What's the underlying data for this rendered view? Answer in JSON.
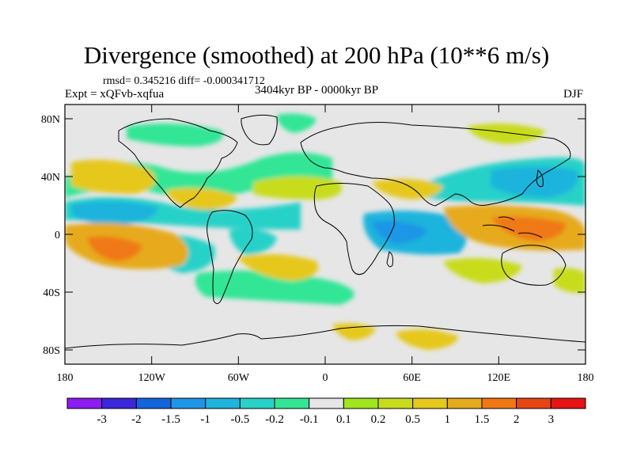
{
  "title": "Divergence (smoothed) at 200 hPa (10**6 m/s)",
  "stats": {
    "rmsd_label": "rmsd= 0.345216 diff= -0.000341712"
  },
  "experiment": "Expt = xQFvb-xqfua",
  "period": "3404kyr BP - 0000kyr BP",
  "season": "DJF",
  "axes": {
    "lat_ticks": [
      "80N",
      "40N",
      "0",
      "40S",
      "80S"
    ],
    "lon_ticks": [
      "180",
      "120W",
      "60W",
      "0",
      "60E",
      "120E",
      "180"
    ]
  },
  "colorbar": {
    "colors": [
      "#8c1cf0",
      "#3c28dc",
      "#1464dc",
      "#1e96e6",
      "#1eb4dc",
      "#28d2c8",
      "#32e696",
      "#e6e6e6",
      "#a0e61e",
      "#c8dc1e",
      "#e6c81e",
      "#e6aa1e",
      "#f07814",
      "#e64614",
      "#e61414"
    ],
    "labels": [
      "-3",
      "-2",
      "-1.5",
      "-1",
      "-0.5",
      "-0.2",
      "-0.1",
      "0.1",
      "0.2",
      "0.5",
      "1",
      "1.5",
      "2",
      "3"
    ]
  },
  "colors": {
    "missing_bg": "#e6e6e6",
    "frame": "#000000"
  }
}
